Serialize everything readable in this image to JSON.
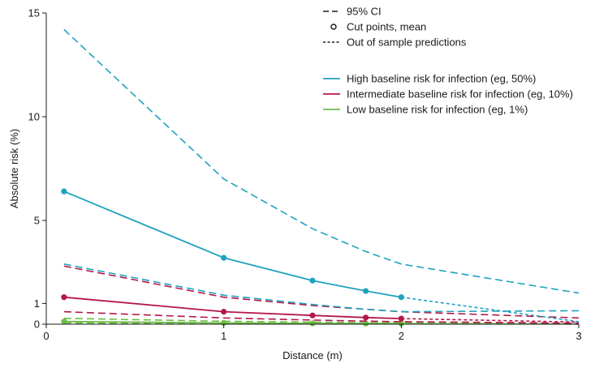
{
  "chart_data": {
    "type": "line",
    "xlabel": "Distance (m)",
    "ylabel": "Absolute risk (%)",
    "xlim": [
      0,
      3
    ],
    "ylim": [
      0,
      15
    ],
    "x_ticks": [
      0,
      1,
      2,
      3
    ],
    "y_ticks": [
      0,
      1,
      5,
      10,
      15
    ],
    "grid": false,
    "legend_position": "top-right",
    "colors": {
      "high": "#1fa2bf",
      "intermediate": "#b5174a",
      "low": "#6cbd45",
      "legend_black": "#1a1a1a"
    },
    "style_legend": [
      {
        "key": "ci",
        "label": "95% CI"
      },
      {
        "key": "cut",
        "label": "Cut points, mean"
      },
      {
        "key": "oos",
        "label": "Out of sample predictions"
      }
    ],
    "series": [
      {
        "key": "high",
        "name": "High baseline risk for infection (eg, 50%)",
        "mean": {
          "x": [
            0.1,
            1.0,
            1.5,
            1.8,
            2.0
          ],
          "y": [
            6.4,
            3.2,
            2.1,
            1.6,
            1.3
          ]
        },
        "oos": {
          "x": [
            2.0,
            3.0
          ],
          "y": [
            1.3,
            0.12
          ]
        },
        "ci_upper": {
          "x": [
            0.1,
            1.0,
            1.5,
            1.8,
            2.0,
            3.0
          ],
          "y": [
            14.2,
            7.0,
            4.6,
            3.5,
            2.9,
            1.5
          ]
        },
        "ci_lower": {
          "x": [
            0.1,
            1.0,
            1.5,
            1.8,
            2.0,
            3.0
          ],
          "y": [
            2.9,
            1.4,
            0.95,
            0.72,
            0.6,
            0.65
          ]
        },
        "cut_points": {
          "x": [
            0.1,
            1.0,
            1.5,
            1.8,
            2.0
          ],
          "y": [
            6.4,
            3.2,
            2.1,
            1.6,
            1.3
          ]
        }
      },
      {
        "key": "intermediate",
        "name": "Intermediate baseline risk for infection (eg, 10%)",
        "mean": {
          "x": [
            0.1,
            1.0,
            1.5,
            1.8,
            2.0
          ],
          "y": [
            1.3,
            0.6,
            0.42,
            0.32,
            0.27
          ]
        },
        "oos": {
          "x": [
            2.0,
            3.0
          ],
          "y": [
            0.27,
            0.1
          ]
        },
        "ci_upper": {
          "x": [
            0.1,
            1.0,
            1.5,
            1.8,
            2.0,
            3.0
          ],
          "y": [
            2.8,
            1.3,
            0.9,
            0.72,
            0.6,
            0.3
          ]
        },
        "ci_lower": {
          "x": [
            0.1,
            1.0,
            1.5,
            1.8,
            2.0,
            3.0
          ],
          "y": [
            0.6,
            0.3,
            0.2,
            0.15,
            0.12,
            0.05
          ]
        },
        "cut_points": {
          "x": [
            0.1,
            1.0,
            1.5,
            1.8,
            2.0
          ],
          "y": [
            1.3,
            0.6,
            0.42,
            0.32,
            0.27
          ]
        }
      },
      {
        "key": "low",
        "name": "Low baseline risk for infection (eg, 1%)",
        "mean": {
          "x": [
            0.1,
            1.0,
            1.5,
            1.8,
            2.0
          ],
          "y": [
            0.13,
            0.06,
            0.04,
            0.03,
            0.03
          ]
        },
        "oos": {
          "x": [
            2.0,
            3.0
          ],
          "y": [
            0.03,
            0.01
          ]
        },
        "ci_upper": {
          "x": [
            0.1,
            1.0,
            1.5,
            1.8,
            2.0,
            3.0
          ],
          "y": [
            0.28,
            0.14,
            0.1,
            0.08,
            0.07,
            0.03
          ]
        },
        "ci_lower": {
          "x": [
            0.1,
            1.0,
            1.5,
            1.8,
            2.0,
            3.0
          ],
          "y": [
            0.06,
            0.03,
            0.02,
            0.015,
            0.012,
            0.005
          ]
        },
        "cut_points": {
          "x": [
            0.1,
            1.0,
            1.5,
            1.8,
            2.0
          ],
          "y": [
            0.13,
            0.06,
            0.04,
            0.03,
            0.03
          ]
        }
      }
    ]
  }
}
